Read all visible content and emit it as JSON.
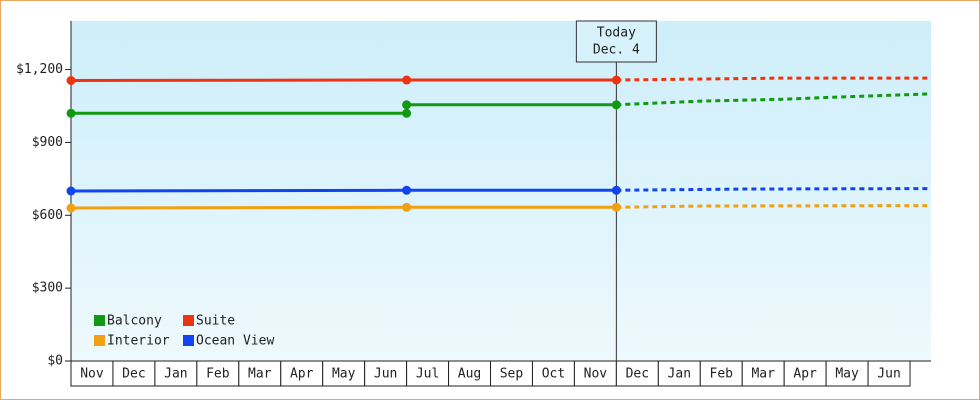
{
  "chart_data": {
    "type": "line",
    "categories": [
      "Nov",
      "Dec",
      "Jan",
      "Feb",
      "Mar",
      "Apr",
      "May",
      "Jun",
      "Jul",
      "Aug",
      "Sep",
      "Oct",
      "Nov",
      "Dec",
      "Jan",
      "Feb",
      "Mar",
      "Apr",
      "May",
      "Jun"
    ],
    "xlim": [
      0,
      20.5
    ],
    "ylim": [
      0,
      1400
    ],
    "yticks": [
      {
        "value": 0,
        "label": "$0"
      },
      {
        "value": 300,
        "label": "$300"
      },
      {
        "value": 600,
        "label": "$600"
      },
      {
        "value": 900,
        "label": "$900"
      },
      {
        "value": 1200,
        "label": "$1,200"
      }
    ],
    "annotation": {
      "x": 13,
      "lines": [
        "Today",
        "Dec. 4"
      ]
    },
    "legend": "bottom-left",
    "series": [
      {
        "name": "Balcony",
        "color": "#119911",
        "x": [
          0,
          8,
          8,
          13
        ],
        "values": [
          1020,
          1020,
          1055,
          1055
        ],
        "forecast_x": [
          13,
          15,
          17,
          18,
          20.5
        ],
        "forecast_values": [
          1055,
          1070,
          1078,
          1085,
          1100
        ]
      },
      {
        "name": "Suite",
        "color": "#ee3311",
        "x": [
          0,
          8,
          13
        ],
        "values": [
          1155,
          1157,
          1157
        ],
        "forecast_x": [
          13,
          17,
          20.5
        ],
        "forecast_values": [
          1157,
          1165,
          1165
        ]
      },
      {
        "name": "Interior",
        "color": "#f0a010",
        "x": [
          0,
          8,
          13
        ],
        "values": [
          630,
          633,
          633
        ],
        "forecast_x": [
          13,
          15,
          20.5
        ],
        "forecast_values": [
          633,
          638,
          640
        ]
      },
      {
        "name": "Ocean View",
        "color": "#1144ee",
        "x": [
          0,
          8,
          13
        ],
        "values": [
          700,
          703,
          703
        ],
        "forecast_x": [
          13,
          16,
          20.5
        ],
        "forecast_values": [
          703,
          708,
          710
        ]
      }
    ]
  }
}
